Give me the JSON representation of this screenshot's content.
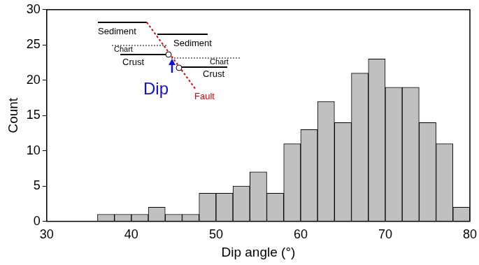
{
  "chart_data": {
    "type": "histogram",
    "bins": [
      36,
      38,
      40,
      42,
      44,
      46,
      48,
      50,
      52,
      54,
      56,
      58,
      60,
      62,
      64,
      66,
      68,
      70,
      72,
      74,
      76,
      78,
      80
    ],
    "values": [
      1,
      1,
      1,
      2,
      1,
      1,
      4,
      4,
      5,
      7,
      4,
      11,
      13,
      17,
      14,
      21,
      23,
      19,
      19,
      14,
      11,
      2
    ],
    "color": "#c0c0c0",
    "xlabel": "Dip angle (°)",
    "ylabel": "Count",
    "xlim": [
      30,
      80
    ],
    "xticks": [
      30,
      40,
      50,
      60,
      70,
      80
    ],
    "ylim": [
      0,
      30
    ],
    "yticks": [
      0,
      5,
      10,
      15,
      20,
      25,
      30
    ],
    "grid": false,
    "annotations": [
      "Sediment",
      "Sediment",
      "Chart",
      "Chart",
      "Crust",
      "Crust",
      "Dip",
      "Fault"
    ]
  }
}
